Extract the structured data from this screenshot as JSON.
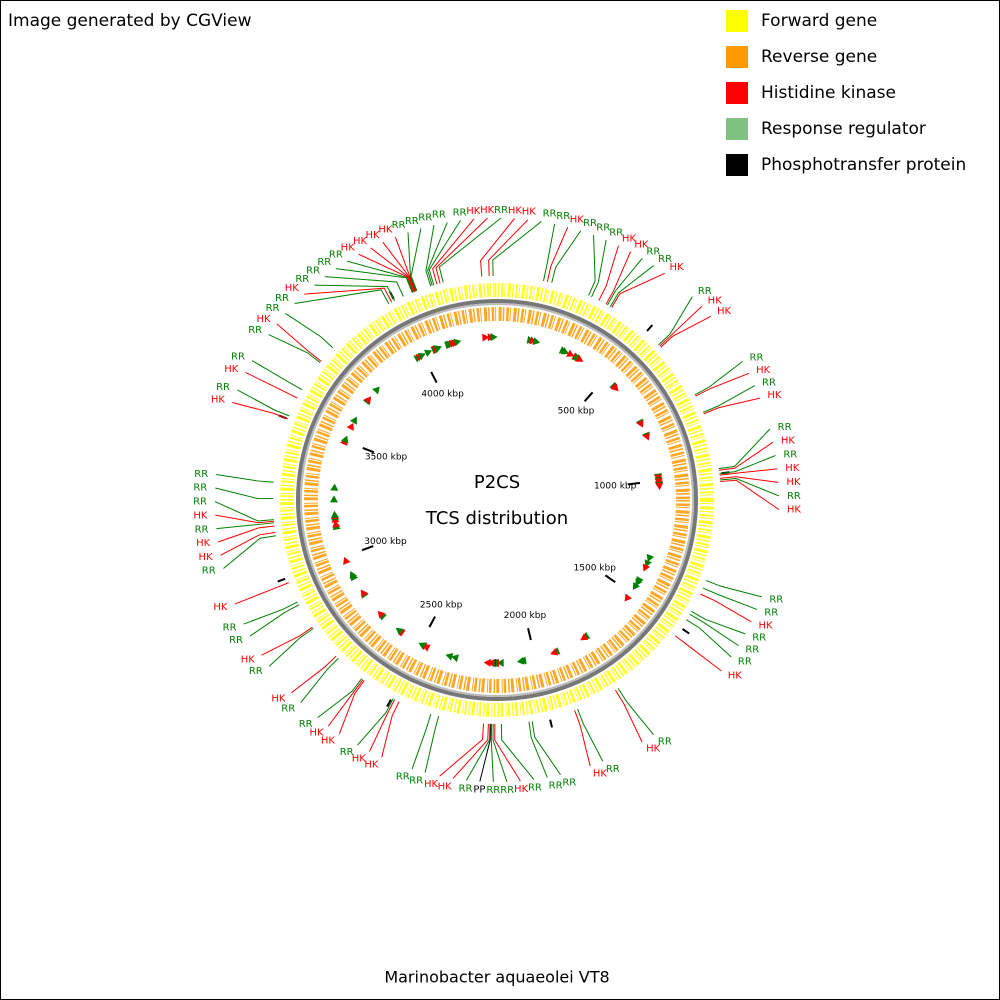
{
  "chart_data": {
    "type": "circular-genome-map",
    "title": "Image generated by CGView",
    "center_text": [
      "P2CS",
      "TCS distribution"
    ],
    "caption": "Marinobacter aquaeolei VT8",
    "xlim": [
      0,
      4327
    ],
    "xticks": [
      {
        "value": 500,
        "label": "500 kbp"
      },
      {
        "value": 1000,
        "label": "1000 kbp"
      },
      {
        "value": 1500,
        "label": "1500 kbp"
      },
      {
        "value": 2000,
        "label": "2000 kbp"
      },
      {
        "value": 2500,
        "label": "2500 kbp"
      },
      {
        "value": 3000,
        "label": "3000 kbp"
      },
      {
        "value": 3500,
        "label": "3500 kbp"
      },
      {
        "value": 4000,
        "label": "4000 kbp"
      }
    ],
    "series": [
      {
        "name": "Forward gene",
        "color": "#ffff00"
      },
      {
        "name": "Reverse gene",
        "color": "#ff9900"
      },
      {
        "name": "Histidine kinase",
        "color": "#ff0000",
        "mark_color": "#ff0000",
        "label": "HK",
        "x": [
          4280,
          4303,
          156,
          325,
          350,
          370,
          560,
          565,
          750,
          810,
          990,
          1005,
          1015,
          1025,
          1380,
          1530,
          1780,
          1920,
          2170,
          2190,
          2205,
          2475,
          2490,
          2600,
          2605,
          2715,
          2830,
          2985,
          3145,
          3165,
          3180,
          3500,
          3570,
          3705,
          3990,
          4065,
          4067,
          4069,
          4071,
          4140,
          4150
        ]
      },
      {
        "name": "Response regulator",
        "color": "#80c080",
        "mark_color": "#008000",
        "label": "RR",
        "x": [
          4315,
          144,
          170,
          290,
          300,
          355,
          365,
          555,
          745,
          805,
          985,
          1000,
          1020,
          1335,
          1360,
          1440,
          1450,
          1470,
          1770,
          1910,
          2055,
          2065,
          2150,
          2175,
          2180,
          2185,
          2345,
          2370,
          2495,
          2610,
          2705,
          2825,
          2910,
          2920,
          3135,
          3175,
          3185,
          3250,
          3300,
          3510,
          3600,
          3700,
          3760,
          3980,
          4000,
          4030,
          4060,
          4062,
          4073,
          4075,
          4120,
          4125,
          4130,
          4160
        ]
      },
      {
        "name": "Phosphotransfer protein",
        "color": "#000000",
        "mark_color": "#000000",
        "label": "PP",
        "x": [
          2183
        ]
      }
    ]
  }
}
